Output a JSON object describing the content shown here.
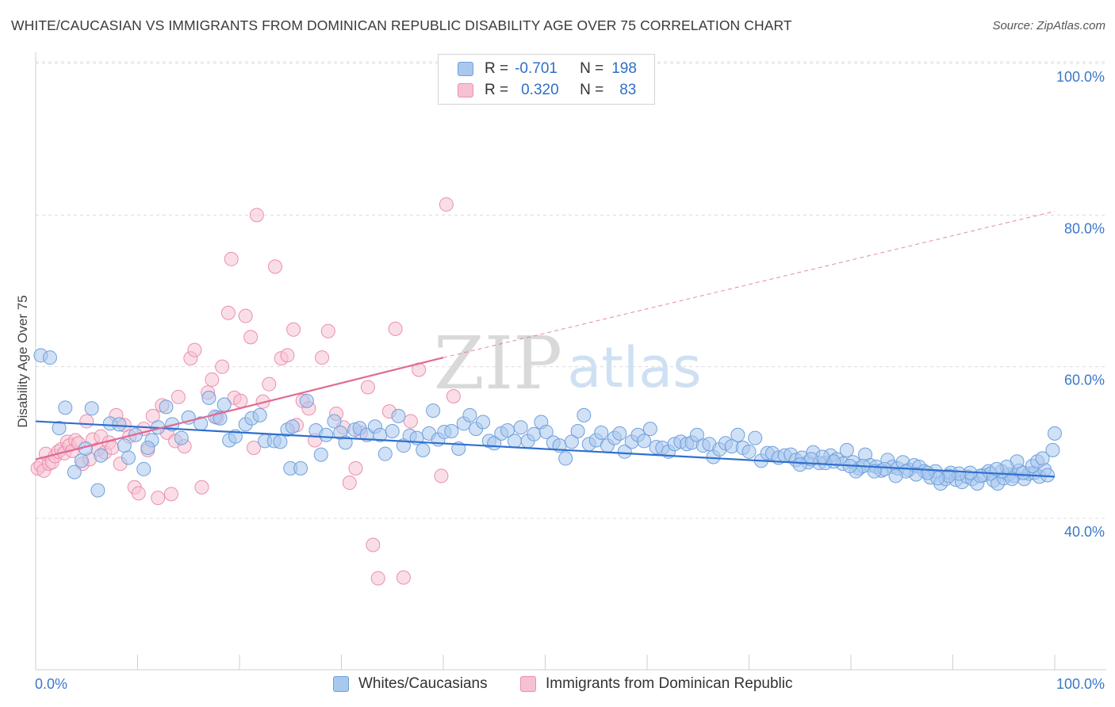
{
  "title": "WHITE/CAUCASIAN VS IMMIGRANTS FROM DOMINICAN REPUBLIC DISABILITY AGE OVER 75 CORRELATION CHART",
  "source": "Source: ZipAtlas.com",
  "watermark": {
    "zip": "ZIP",
    "atlas": "atlas"
  },
  "legend": {
    "rows": [
      {
        "r_label": "R =",
        "r_value": "-0.701",
        "n_label": "N =",
        "n_value": "198"
      },
      {
        "r_label": "R =",
        "r_value": "0.320",
        "n_label": "N =",
        "n_value": "83"
      }
    ]
  },
  "bottom_legend": {
    "series1": "Whites/Caucasians",
    "series2": "Immigrants from Dominican Republic"
  },
  "colors": {
    "blue_fill": "#a9c8ee",
    "blue_stroke": "#6fa0dc",
    "blue_line": "#2f6fcf",
    "pink_fill": "#f6c2d2",
    "pink_stroke": "#ea8fae",
    "pink_line": "#e06a94",
    "tick_text": "#3b78c9",
    "grid": "#dcdcdc"
  },
  "chart_data": {
    "type": "scatter",
    "title": "WHITE/CAUCASIAN VS IMMIGRANTS FROM DOMINICAN REPUBLIC DISABILITY AGE OVER 75 CORRELATION CHART",
    "xlabel": "",
    "ylabel": "Disability Age Over 75",
    "xlim": [
      0,
      100
    ],
    "ylim": [
      20,
      103
    ],
    "x_ticks": [
      "0.0%",
      "100.0%"
    ],
    "y_ticks": [
      {
        "value": 40,
        "label": "40.0%"
      },
      {
        "value": 60,
        "label": "60.0%"
      },
      {
        "value": 80,
        "label": "80.0%"
      },
      {
        "value": 100,
        "label": "100.0%"
      }
    ],
    "grid": true,
    "legend_position": "top-center",
    "series": [
      {
        "name": "Whites/Caucasians",
        "r": -0.701,
        "n": 198,
        "trend": {
          "x": [
            0,
            100
          ],
          "y": [
            52.8,
            45.5
          ],
          "dashed_to": null
        },
        "points": [
          [
            0.5,
            61.5
          ],
          [
            1.4,
            61.2
          ],
          [
            2.3,
            51.9
          ],
          [
            2.9,
            54.6
          ],
          [
            3.8,
            46.1
          ],
          [
            4.9,
            49.2
          ],
          [
            4.5,
            47.6
          ],
          [
            5.5,
            54.5
          ],
          [
            6.4,
            48.3
          ],
          [
            6.1,
            43.7
          ],
          [
            7.3,
            52.5
          ],
          [
            8.2,
            52.4
          ],
          [
            8.7,
            49.6
          ],
          [
            9.1,
            48.0
          ],
          [
            9.8,
            51.0
          ],
          [
            10.6,
            46.5
          ],
          [
            11.4,
            50.3
          ],
          [
            12.0,
            52.0
          ],
          [
            11.0,
            49.3
          ],
          [
            12.8,
            54.7
          ],
          [
            13.4,
            52.4
          ],
          [
            14.3,
            50.6
          ],
          [
            15.0,
            53.3
          ],
          [
            16.2,
            52.5
          ],
          [
            17.0,
            55.9
          ],
          [
            17.6,
            53.4
          ],
          [
            18.5,
            55.0
          ],
          [
            18.1,
            53.2
          ],
          [
            19.0,
            50.3
          ],
          [
            19.6,
            50.8
          ],
          [
            20.6,
            52.4
          ],
          [
            21.2,
            53.2
          ],
          [
            22.0,
            53.6
          ],
          [
            22.5,
            50.2
          ],
          [
            23.4,
            50.2
          ],
          [
            24.0,
            50.1
          ],
          [
            24.7,
            51.7
          ],
          [
            25.2,
            52.1
          ],
          [
            25.0,
            46.6
          ],
          [
            26.0,
            46.6
          ],
          [
            26.6,
            55.5
          ],
          [
            27.5,
            51.6
          ],
          [
            28.0,
            48.4
          ],
          [
            28.5,
            51.0
          ],
          [
            29.3,
            52.8
          ],
          [
            29.9,
            51.3
          ],
          [
            30.4,
            50.0
          ],
          [
            31.3,
            51.7
          ],
          [
            31.8,
            51.9
          ],
          [
            32.5,
            51.0
          ],
          [
            33.3,
            52.1
          ],
          [
            33.8,
            51.0
          ],
          [
            34.3,
            48.5
          ],
          [
            35.0,
            51.5
          ],
          [
            35.6,
            53.5
          ],
          [
            36.1,
            49.6
          ],
          [
            36.7,
            50.9
          ],
          [
            37.4,
            50.6
          ],
          [
            38.0,
            49.0
          ],
          [
            38.6,
            51.2
          ],
          [
            39.0,
            54.2
          ],
          [
            39.5,
            50.4
          ],
          [
            40.1,
            51.4
          ],
          [
            40.8,
            51.5
          ],
          [
            41.5,
            49.2
          ],
          [
            42.0,
            52.5
          ],
          [
            42.6,
            53.6
          ],
          [
            43.2,
            51.8
          ],
          [
            43.9,
            52.7
          ],
          [
            44.5,
            50.2
          ],
          [
            45.0,
            49.9
          ],
          [
            45.7,
            51.2
          ],
          [
            46.3,
            51.6
          ],
          [
            47.0,
            50.2
          ],
          [
            47.6,
            52.0
          ],
          [
            48.3,
            50.2
          ],
          [
            48.9,
            51.1
          ],
          [
            49.6,
            52.7
          ],
          [
            50.1,
            51.4
          ],
          [
            50.8,
            50.0
          ],
          [
            51.4,
            49.6
          ],
          [
            52.0,
            47.9
          ],
          [
            52.6,
            50.1
          ],
          [
            53.2,
            51.5
          ],
          [
            53.8,
            53.6
          ],
          [
            54.3,
            49.8
          ],
          [
            55.0,
            50.3
          ],
          [
            55.5,
            51.3
          ],
          [
            56.1,
            49.6
          ],
          [
            56.8,
            50.6
          ],
          [
            57.3,
            51.2
          ],
          [
            57.8,
            48.8
          ],
          [
            58.5,
            50.1
          ],
          [
            59.1,
            51.0
          ],
          [
            59.7,
            50.2
          ],
          [
            60.3,
            51.8
          ],
          [
            60.9,
            49.4
          ],
          [
            61.5,
            49.3
          ],
          [
            62.1,
            48.8
          ],
          [
            62.7,
            49.8
          ],
          [
            63.3,
            50.1
          ],
          [
            63.9,
            49.8
          ],
          [
            64.4,
            50.0
          ],
          [
            64.9,
            51.0
          ],
          [
            65.5,
            49.6
          ],
          [
            66.1,
            49.8
          ],
          [
            66.5,
            48.1
          ],
          [
            67.1,
            49.1
          ],
          [
            67.7,
            49.9
          ],
          [
            68.3,
            49.5
          ],
          [
            68.9,
            51.0
          ],
          [
            69.4,
            49.3
          ],
          [
            70.0,
            48.8
          ],
          [
            70.6,
            50.6
          ],
          [
            71.2,
            47.6
          ],
          [
            71.8,
            48.6
          ],
          [
            72.3,
            48.6
          ],
          [
            72.9,
            48.0
          ],
          [
            73.5,
            48.3
          ],
          [
            74.1,
            48.4
          ],
          [
            74.6,
            47.7
          ],
          [
            75.2,
            48.0
          ],
          [
            75.8,
            47.4
          ],
          [
            76.3,
            48.7
          ],
          [
            76.9,
            47.3
          ],
          [
            77.5,
            47.3
          ],
          [
            78.0,
            48.3
          ],
          [
            78.6,
            47.8
          ],
          [
            79.2,
            47.2
          ],
          [
            79.6,
            49.0
          ],
          [
            80.2,
            47.4
          ],
          [
            80.8,
            46.6
          ],
          [
            81.4,
            48.4
          ],
          [
            81.9,
            47.0
          ],
          [
            82.5,
            46.8
          ],
          [
            83.0,
            46.3
          ],
          [
            83.6,
            47.7
          ],
          [
            84.1,
            46.8
          ],
          [
            84.6,
            46.6
          ],
          [
            85.1,
            47.4
          ],
          [
            85.7,
            46.4
          ],
          [
            86.2,
            47.0
          ],
          [
            86.7,
            46.8
          ],
          [
            87.2,
            46.2
          ],
          [
            87.8,
            45.4
          ],
          [
            88.3,
            46.2
          ],
          [
            88.8,
            44.6
          ],
          [
            89.3,
            45.2
          ],
          [
            89.8,
            46.0
          ],
          [
            90.3,
            45.1
          ],
          [
            90.9,
            44.8
          ],
          [
            91.4,
            45.5
          ],
          [
            91.9,
            45.2
          ],
          [
            92.4,
            44.6
          ],
          [
            93.0,
            45.7
          ],
          [
            93.5,
            46.2
          ],
          [
            94.0,
            45.0
          ],
          [
            94.4,
            44.6
          ],
          [
            95.0,
            45.3
          ],
          [
            95.5,
            45.8
          ],
          [
            96.0,
            45.6
          ],
          [
            96.5,
            46.3
          ],
          [
            97.0,
            45.2
          ],
          [
            97.5,
            45.9
          ],
          [
            98.0,
            46.0
          ],
          [
            98.5,
            45.5
          ],
          [
            99.0,
            46.4
          ],
          [
            99.3,
            45.7
          ],
          [
            96.9,
            46.0
          ],
          [
            95.8,
            45.2
          ],
          [
            94.8,
            46.2
          ],
          [
            93.7,
            45.9
          ],
          [
            92.7,
            45.6
          ],
          [
            91.7,
            46.0
          ],
          [
            90.6,
            45.9
          ],
          [
            89.6,
            45.6
          ],
          [
            88.5,
            45.3
          ],
          [
            87.5,
            46.0
          ],
          [
            86.4,
            45.8
          ],
          [
            85.4,
            46.2
          ],
          [
            84.4,
            45.6
          ],
          [
            83.3,
            46.5
          ],
          [
            82.3,
            46.2
          ],
          [
            81.2,
            46.9
          ],
          [
            80.5,
            46.2
          ],
          [
            79.9,
            46.9
          ],
          [
            78.3,
            47.5
          ],
          [
            77.2,
            48.1
          ],
          [
            76.1,
            47.8
          ],
          [
            75.0,
            47.1
          ],
          [
            97.8,
            46.9
          ],
          [
            98.3,
            47.5
          ],
          [
            98.8,
            47.9
          ],
          [
            99.8,
            49.0
          ],
          [
            100.0,
            51.2
          ],
          [
            96.3,
            47.5
          ],
          [
            95.3,
            46.8
          ],
          [
            94.3,
            46.5
          ]
        ]
      },
      {
        "name": "Immigrants from Dominican Republic",
        "r": 0.32,
        "n": 83,
        "trend": {
          "x": [
            0,
            40.0
          ],
          "y": [
            47.8,
            61.2
          ],
          "dashed_to": [
            100,
            80.5
          ]
        },
        "points": [
          [
            0.2,
            46.6
          ],
          [
            0.5,
            47.0
          ],
          [
            0.8,
            46.3
          ],
          [
            1.0,
            48.5
          ],
          [
            1.3,
            47.2
          ],
          [
            1.6,
            47.4
          ],
          [
            1.9,
            48.2
          ],
          [
            2.2,
            48.8
          ],
          [
            2.5,
            49.1
          ],
          [
            2.8,
            48.6
          ],
          [
            3.1,
            50.1
          ],
          [
            3.3,
            49.6
          ],
          [
            3.6,
            48.9
          ],
          [
            3.9,
            50.3
          ],
          [
            4.2,
            49.9
          ],
          [
            4.6,
            47.2
          ],
          [
            5.0,
            52.8
          ],
          [
            5.3,
            47.8
          ],
          [
            5.6,
            50.4
          ],
          [
            6.1,
            49.1
          ],
          [
            6.4,
            50.8
          ],
          [
            6.8,
            48.7
          ],
          [
            7.2,
            50.0
          ],
          [
            7.5,
            49.3
          ],
          [
            7.9,
            53.6
          ],
          [
            8.3,
            47.2
          ],
          [
            8.7,
            52.3
          ],
          [
            9.2,
            50.8
          ],
          [
            9.7,
            44.1
          ],
          [
            10.1,
            43.3
          ],
          [
            10.6,
            51.8
          ],
          [
            11.0,
            49.0
          ],
          [
            11.5,
            53.5
          ],
          [
            12.0,
            42.7
          ],
          [
            12.4,
            54.9
          ],
          [
            12.9,
            51.3
          ],
          [
            13.3,
            43.2
          ],
          [
            13.7,
            50.2
          ],
          [
            14.0,
            56.0
          ],
          [
            14.6,
            49.5
          ],
          [
            15.2,
            61.1
          ],
          [
            15.6,
            62.2
          ],
          [
            16.3,
            44.1
          ],
          [
            16.9,
            56.6
          ],
          [
            17.3,
            58.3
          ],
          [
            17.8,
            53.3
          ],
          [
            18.3,
            60.0
          ],
          [
            18.9,
            67.1
          ],
          [
            19.5,
            55.9
          ],
          [
            19.2,
            74.2
          ],
          [
            20.1,
            55.5
          ],
          [
            20.6,
            66.7
          ],
          [
            21.1,
            63.9
          ],
          [
            21.4,
            49.3
          ],
          [
            21.7,
            80.0
          ],
          [
            22.3,
            55.4
          ],
          [
            22.9,
            57.7
          ],
          [
            23.5,
            73.2
          ],
          [
            24.1,
            61.1
          ],
          [
            24.7,
            61.5
          ],
          [
            25.3,
            64.9
          ],
          [
            25.6,
            52.3
          ],
          [
            26.2,
            55.5
          ],
          [
            26.8,
            54.5
          ],
          [
            27.4,
            50.3
          ],
          [
            28.1,
            61.2
          ],
          [
            28.7,
            64.7
          ],
          [
            29.5,
            53.8
          ],
          [
            30.2,
            52.0
          ],
          [
            30.8,
            44.7
          ],
          [
            31.4,
            46.6
          ],
          [
            31.9,
            51.3
          ],
          [
            32.6,
            57.3
          ],
          [
            33.1,
            36.5
          ],
          [
            33.6,
            32.1
          ],
          [
            34.7,
            54.1
          ],
          [
            35.3,
            65.0
          ],
          [
            36.1,
            32.2
          ],
          [
            36.8,
            52.8
          ],
          [
            37.6,
            59.6
          ],
          [
            39.8,
            45.6
          ],
          [
            40.3,
            81.4
          ],
          [
            41.0,
            56.1
          ]
        ]
      }
    ]
  }
}
